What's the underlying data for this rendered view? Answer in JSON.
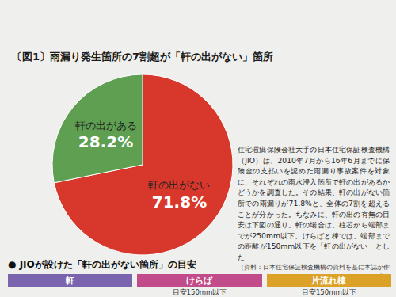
{
  "chart_data": {
    "type": "pie",
    "title": "〔図1〕雨漏り発生箇所の7割超が「軒の出がない」箇所",
    "categories": [
      "軒の出がない",
      "軒の出がある"
    ],
    "values": [
      71.8,
      28.2
    ],
    "value_labels": [
      "71.8%",
      "28.2%"
    ],
    "colors": [
      "#d8382c",
      "#5e9f52"
    ],
    "data_labels": true
  },
  "article": {
    "paragraph": "住宅瑕疵保険会社大手の日本住宅保証検査機構（JIO）は、2010年7月から16年6月までに保険金の支払いを認めた雨漏り事故案件を対象に、それぞれの雨水浸入箇所で軒の出があるかどうかを調査した。その結果、軒の出がない箇所での雨漏りが71.8%と、全体の7割を超えることが分かった。ちなみに、軒の出の有無の目安は下図の通り。軒の場合は、柱芯から端部までが250mm以下、けらばと棟では、端部までの距離が150mm以下を「軒の出がない」とした",
    "source": "（資料：日本住宅保証検査機構の資料を基に本誌が作成）",
    "guide": {
      "heading": "● JIOが設けた「軒の出がない箇所」の目安",
      "items": [
        {
          "label": "軒",
          "note": null
        },
        {
          "label": "けらば",
          "note": "目安150mm以下"
        },
        {
          "label": "片流れ棟",
          "note": "目安150mm以下"
        }
      ]
    }
  }
}
